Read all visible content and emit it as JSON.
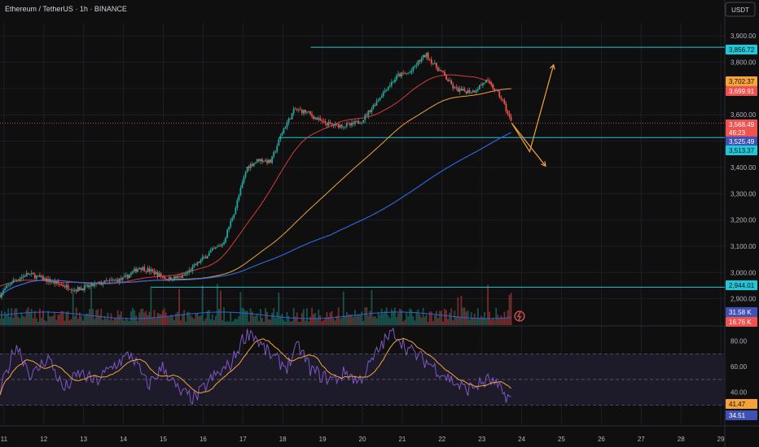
{
  "header": {
    "symbol": "Ethereum / TetherUS · 1h · BINANCE",
    "currency_button": "USDT"
  },
  "colors": {
    "background": "#0f0f0f",
    "grid": "#1c1f26",
    "up": "#26a69a",
    "down": "#ef5350",
    "ma_fast": "#d93a3a",
    "ma_mid": "#f3a33a",
    "ma_slow": "#2e63d8",
    "cyan": "#1ec8d8",
    "rsi_line": "#7e57c2",
    "rsi_ma": "#f3a33a",
    "rsi_band": "#1d1a2a"
  },
  "chart_data": [
    {
      "type": "candlestick",
      "x_unit": "day",
      "x_ticks": [
        11,
        12,
        13,
        14,
        15,
        16,
        17,
        18,
        19,
        20,
        21,
        22,
        23,
        24,
        25,
        26,
        27,
        28,
        29
      ],
      "x_range": [
        10.9,
        29.1
      ],
      "y_ticks": [
        2900,
        3000,
        3100,
        3200,
        3300,
        3400,
        3500,
        3600,
        3700,
        3800,
        3900
      ],
      "y_range": [
        2800,
        3950
      ],
      "anchors": [
        [
          10.9,
          2915
        ],
        [
          11.2,
          2965
        ],
        [
          11.6,
          2995
        ],
        [
          12.0,
          2975
        ],
        [
          12.4,
          2955
        ],
        [
          12.8,
          2935
        ],
        [
          13.2,
          2950
        ],
        [
          13.6,
          2965
        ],
        [
          14.0,
          2975
        ],
        [
          14.4,
          3020
        ],
        [
          14.7,
          3005
        ],
        [
          15.1,
          2975
        ],
        [
          15.5,
          2985
        ],
        [
          15.9,
          3040
        ],
        [
          16.2,
          3080
        ],
        [
          16.5,
          3110
        ],
        [
          16.8,
          3240
        ],
        [
          17.1,
          3400
        ],
        [
          17.4,
          3430
        ],
        [
          17.7,
          3420
        ],
        [
          18.0,
          3540
        ],
        [
          18.3,
          3620
        ],
        [
          18.6,
          3610
        ],
        [
          19.0,
          3570
        ],
        [
          19.3,
          3560
        ],
        [
          19.7,
          3560
        ],
        [
          20.0,
          3580
        ],
        [
          20.3,
          3640
        ],
        [
          20.6,
          3700
        ],
        [
          20.9,
          3750
        ],
        [
          21.2,
          3760
        ],
        [
          21.4,
          3800
        ],
        [
          21.6,
          3830
        ],
        [
          21.8,
          3790
        ],
        [
          22.0,
          3760
        ],
        [
          22.3,
          3700
        ],
        [
          22.5,
          3690
        ],
        [
          22.8,
          3690
        ],
        [
          23.1,
          3730
        ],
        [
          23.3,
          3700
        ],
        [
          23.5,
          3660
        ],
        [
          23.75,
          3568
        ]
      ],
      "levels": [
        {
          "price": 3856.72,
          "from_day": 18.7
        },
        {
          "price": 3513.37,
          "from_day": 17.9
        },
        {
          "price": 2944.01,
          "from_day": 14.7
        }
      ],
      "projections": [
        {
          "color": "orange",
          "points": [
            [
              23.75,
              3568
            ],
            [
              24.2,
              3460
            ],
            [
              24.8,
              3790
            ]
          ]
        },
        {
          "color": "orange",
          "points": [
            [
              23.75,
              3568
            ],
            [
              24.6,
              3405
            ]
          ]
        }
      ],
      "price_labels": [
        {
          "text": "3,856.72",
          "price": 3856.72,
          "style": "cyan"
        },
        {
          "text": "3,702.37",
          "price": 3702.37,
          "style": "orange"
        },
        {
          "text": "3,699.91",
          "price": 3699.91,
          "style": "red"
        },
        {
          "text": "3,568.49",
          "price": 3568.49,
          "style": "red"
        },
        {
          "text": "46:23",
          "price": 3548,
          "style": "red"
        },
        {
          "text": "3,525.49",
          "price": 3525.49,
          "style": "blue"
        },
        {
          "text": "3,513.37",
          "price": 3513.37,
          "style": "cyan"
        },
        {
          "text": "2,944.01",
          "price": 2944.01,
          "style": "cyan"
        }
      ],
      "volume": {
        "labels": [
          {
            "text": "31.58 K",
            "style": "blue"
          },
          {
            "text": "16.76 K",
            "style": "red"
          }
        ]
      },
      "moving_averages": [
        "fast",
        "mid",
        "slow"
      ]
    },
    {
      "type": "line",
      "name": "RSI",
      "y_ticks": [
        40,
        60,
        80
      ],
      "y_range": [
        15,
        90
      ],
      "band": [
        30,
        70
      ],
      "mid": 50,
      "anchors": [
        [
          10.9,
          40
        ],
        [
          11.3,
          78
        ],
        [
          11.7,
          52
        ],
        [
          12.1,
          68
        ],
        [
          12.5,
          42
        ],
        [
          12.9,
          55
        ],
        [
          13.3,
          48
        ],
        [
          13.8,
          62
        ],
        [
          14.2,
          70
        ],
        [
          14.6,
          45
        ],
        [
          15.0,
          60
        ],
        [
          15.4,
          40
        ],
        [
          15.8,
          35
        ],
        [
          16.2,
          50
        ],
        [
          16.7,
          62
        ],
        [
          17.0,
          82
        ],
        [
          17.2,
          88
        ],
        [
          17.5,
          75
        ],
        [
          17.8,
          66
        ],
        [
          18.1,
          60
        ],
        [
          18.4,
          76
        ],
        [
          18.7,
          58
        ],
        [
          19.0,
          52
        ],
        [
          19.3,
          50
        ],
        [
          19.6,
          56
        ],
        [
          19.9,
          48
        ],
        [
          20.2,
          62
        ],
        [
          20.5,
          78
        ],
        [
          20.8,
          88
        ],
        [
          21.1,
          75
        ],
        [
          21.4,
          68
        ],
        [
          21.7,
          62
        ],
        [
          22.0,
          55
        ],
        [
          22.3,
          48
        ],
        [
          22.6,
          42
        ],
        [
          22.9,
          46
        ],
        [
          23.2,
          50
        ],
        [
          23.5,
          40
        ],
        [
          23.75,
          34.51
        ]
      ],
      "labels": [
        {
          "text": "41.47",
          "value": 41.47,
          "style": "orange"
        },
        {
          "text": "34.51",
          "value": 34.51,
          "style": "blue"
        }
      ]
    }
  ]
}
